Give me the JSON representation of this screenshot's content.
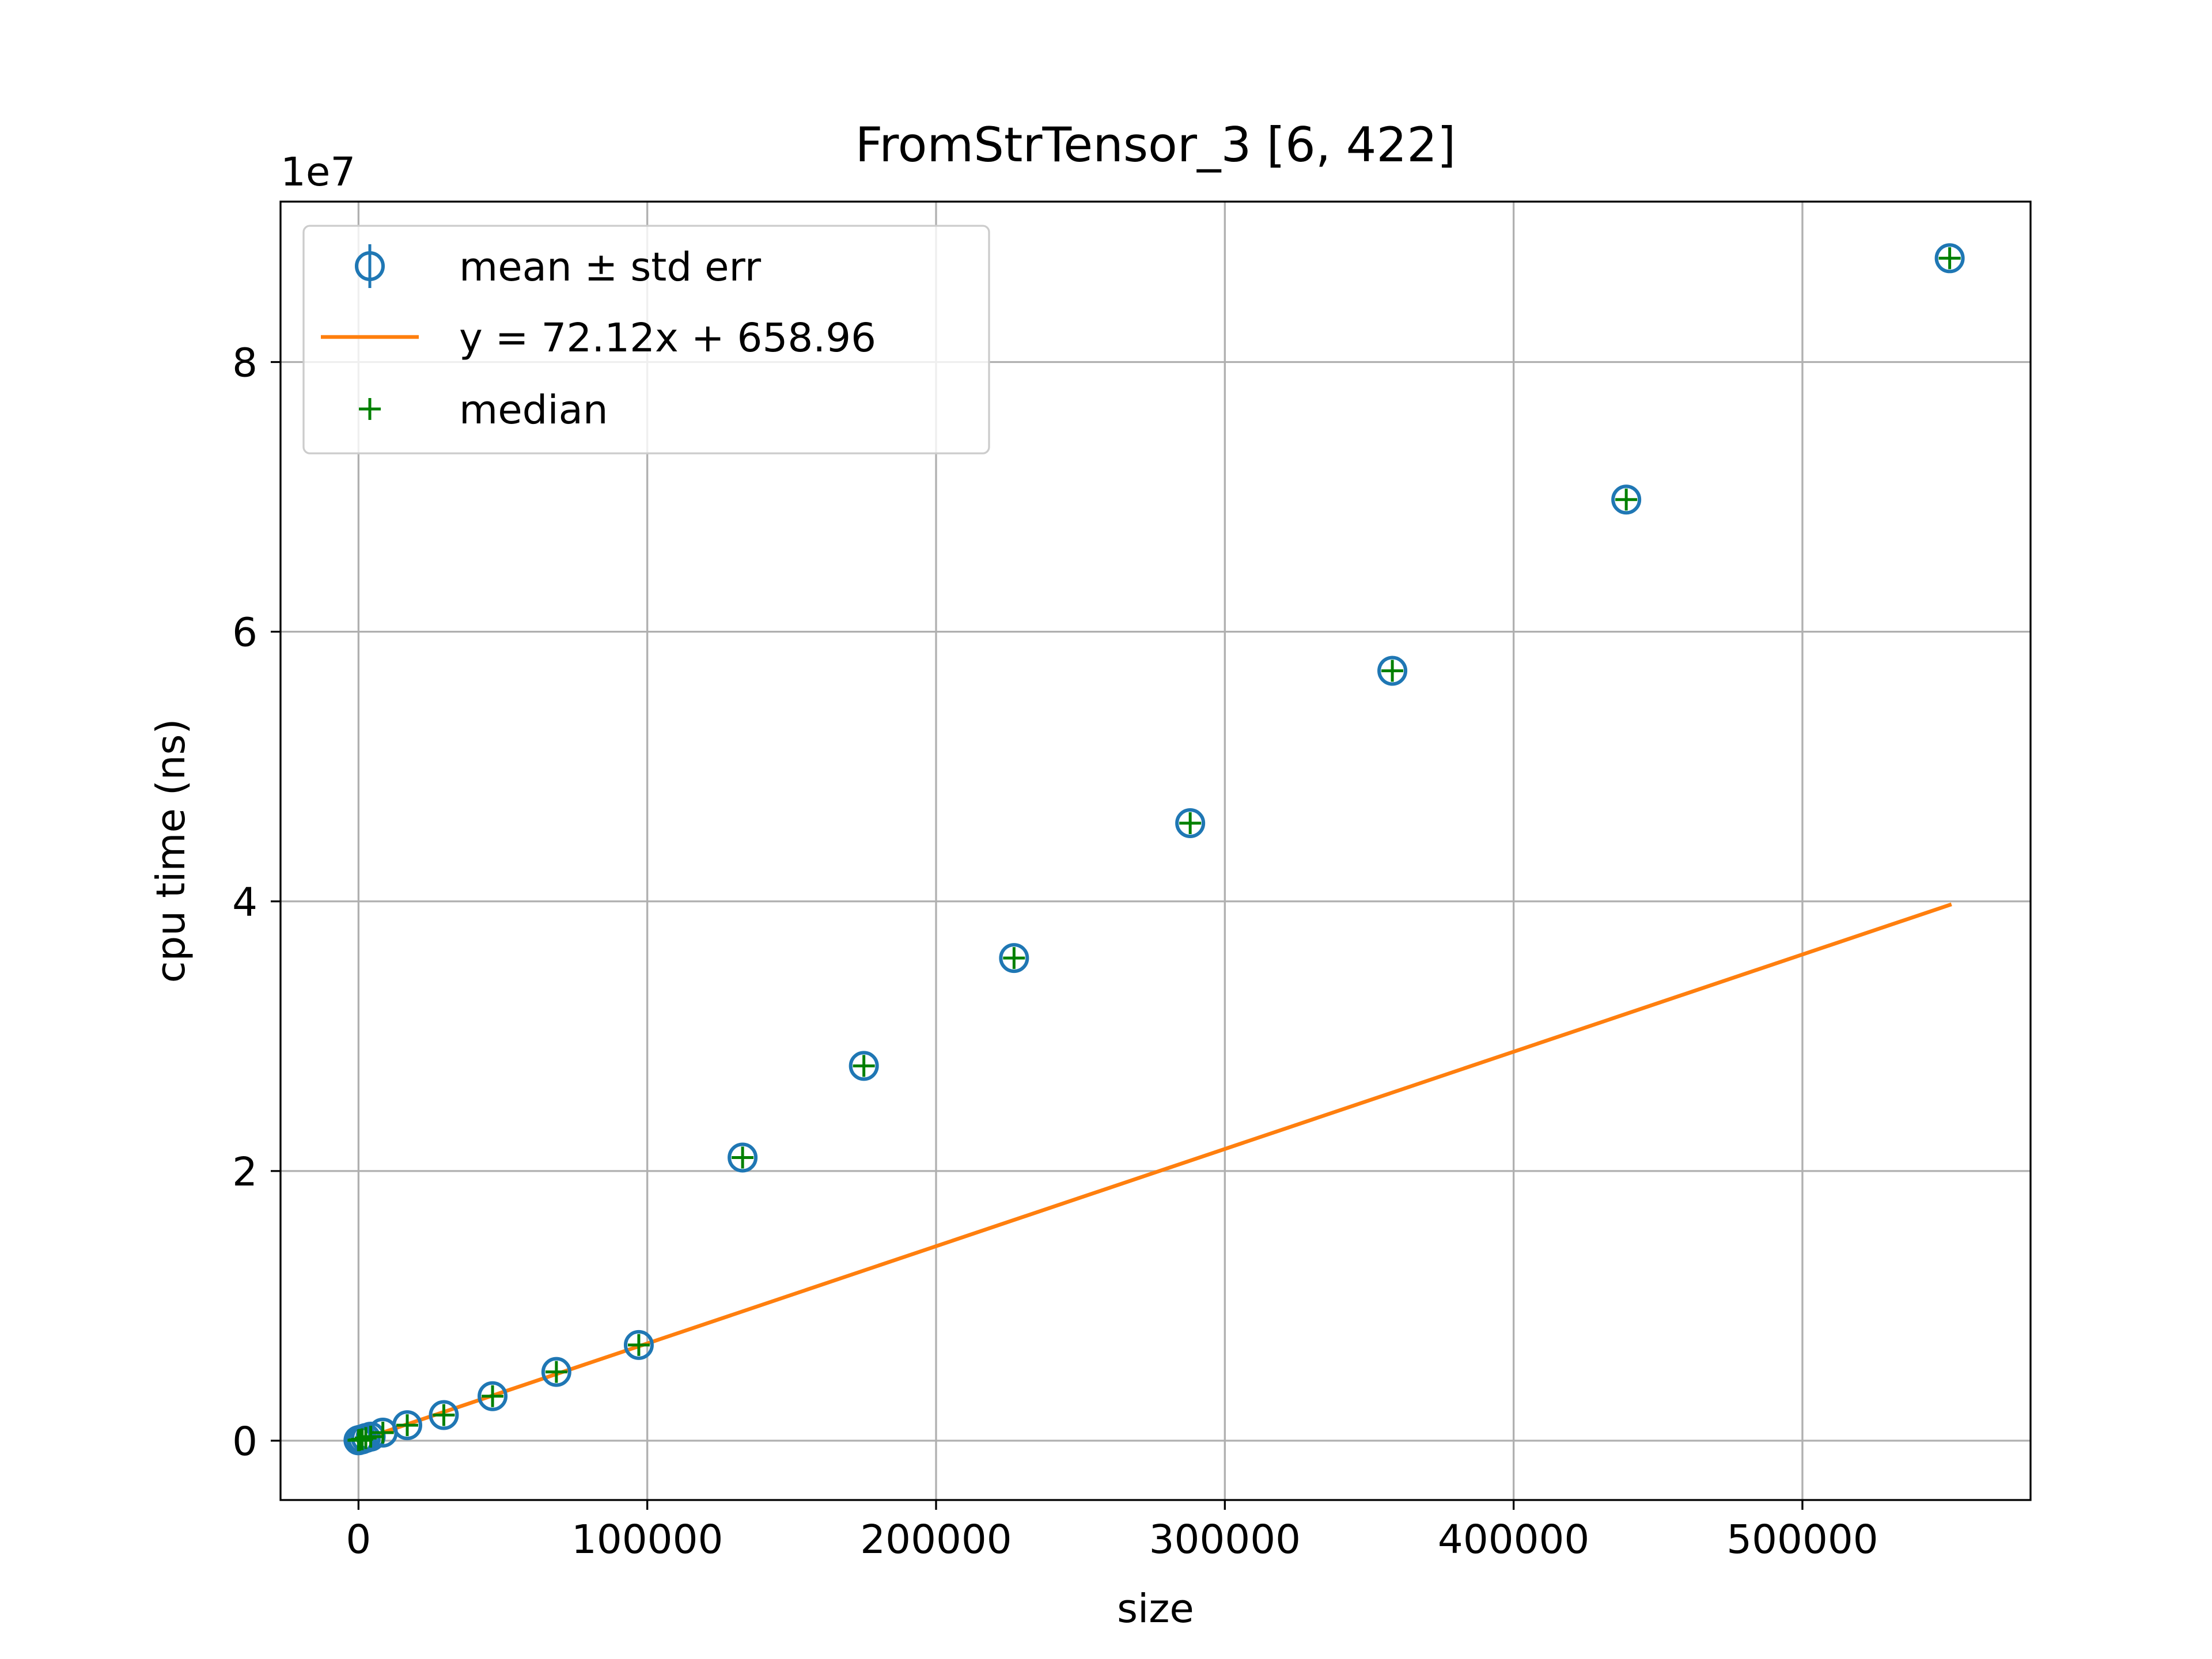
{
  "chart_data": {
    "type": "scatter",
    "title": "FromStrTensor_3 [6, 422]",
    "xlabel": "size",
    "ylabel": "cpu time (ns)",
    "y_scale_label": "1e7",
    "xlim": [
      -27000,
      579000
    ],
    "ylim": [
      -4400000,
      91900000
    ],
    "x_ticks": [
      0,
      100000,
      200000,
      300000,
      400000,
      500000
    ],
    "x_tick_labels": [
      "0",
      "100000",
      "200000",
      "300000",
      "400000",
      "500000"
    ],
    "y_ticks": [
      0,
      20000000,
      40000000,
      60000000,
      80000000
    ],
    "y_tick_labels": [
      "0",
      "2",
      "4",
      "6",
      "8"
    ],
    "grid": true,
    "legend_position": "upper-left",
    "series": [
      {
        "name": "mean ± std err",
        "kind": "errorbar",
        "color": "#1f77b4",
        "x": [
          0,
          422,
          1266,
          2532,
          4220,
          8440,
          16880,
          29540,
          46420,
          68520,
          97060,
          133000,
          175000,
          227000,
          288000,
          358000,
          439000,
          551000
        ],
        "y": [
          30000,
          60000,
          100000,
          200000,
          300000,
          600000,
          1150000,
          1900000,
          3300000,
          5100000,
          7100000,
          21000000,
          27800000,
          35800000,
          45800000,
          57100000,
          69800000,
          87700000
        ]
      },
      {
        "name": "y = 72.12x + 658.96",
        "kind": "line",
        "color": "#ff7f0e",
        "x": [
          0,
          551000
        ],
        "y": [
          658.96,
          39738778.96
        ]
      },
      {
        "name": "median",
        "kind": "plus",
        "color": "#008000",
        "x": [
          0,
          422,
          1266,
          2532,
          4220,
          8440,
          16880,
          29540,
          46420,
          68520,
          97060,
          133000,
          175000,
          227000,
          288000,
          358000,
          439000,
          551000
        ],
        "y": [
          30000,
          60000,
          100000,
          200000,
          300000,
          600000,
          1150000,
          1900000,
          3300000,
          5100000,
          7100000,
          21000000,
          27800000,
          35800000,
          45800000,
          57100000,
          69800000,
          87700000
        ]
      }
    ]
  }
}
